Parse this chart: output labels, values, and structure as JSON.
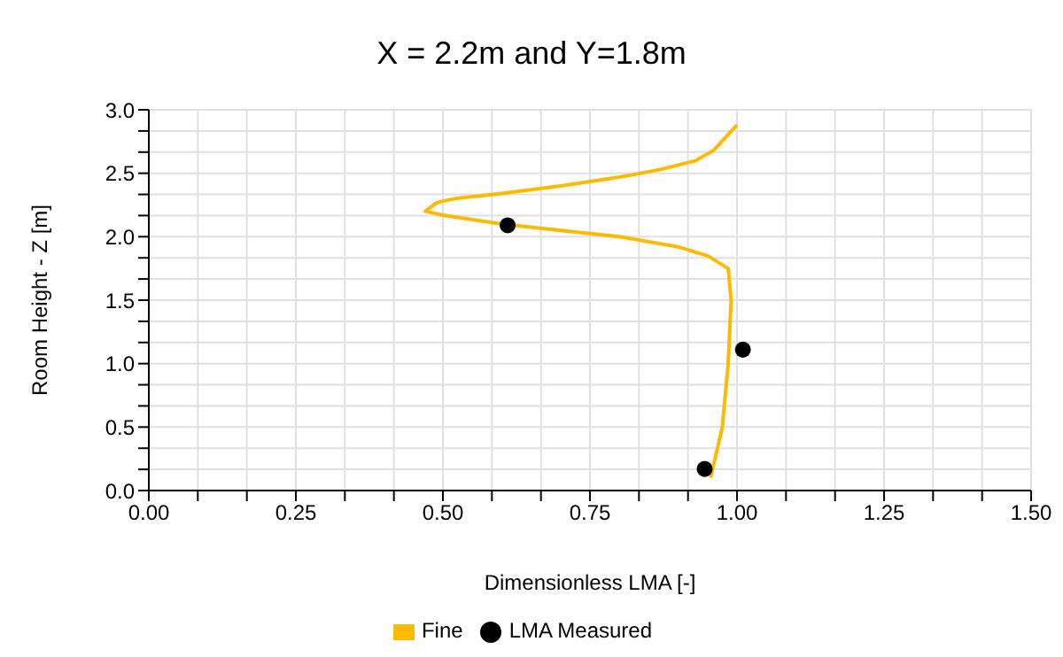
{
  "chart_data": {
    "type": "line",
    "title": "X = 2.2m and Y=1.8m",
    "xlabel": "Dimensionless LMA [-]",
    "ylabel": "Room Height - Z [m]",
    "xlim": [
      0,
      1.5
    ],
    "ylim": [
      0,
      3.0
    ],
    "xticks": [
      {
        "value": 0,
        "label": "0.00"
      },
      {
        "value": 0.0833,
        "label": null
      },
      {
        "value": 0.1667,
        "label": null
      },
      {
        "value": 0.25,
        "label": "0.25"
      },
      {
        "value": 0.3333,
        "label": null
      },
      {
        "value": 0.4167,
        "label": null
      },
      {
        "value": 0.5,
        "label": "0.50"
      },
      {
        "value": 0.5833,
        "label": null
      },
      {
        "value": 0.6667,
        "label": null
      },
      {
        "value": 0.75,
        "label": "0.75"
      },
      {
        "value": 0.8333,
        "label": null
      },
      {
        "value": 0.9167,
        "label": null
      },
      {
        "value": 1.0,
        "label": "1.00"
      },
      {
        "value": 1.0833,
        "label": null
      },
      {
        "value": 1.1667,
        "label": null
      },
      {
        "value": 1.25,
        "label": "1.25"
      },
      {
        "value": 1.3333,
        "label": null
      },
      {
        "value": 1.4167,
        "label": null
      },
      {
        "value": 1.5,
        "label": "1.50"
      }
    ],
    "yticks": [
      {
        "value": 0,
        "label": "0.0"
      },
      {
        "value": 0.1667,
        "label": null
      },
      {
        "value": 0.3333,
        "label": null
      },
      {
        "value": 0.5,
        "label": "0.5"
      },
      {
        "value": 0.6667,
        "label": null
      },
      {
        "value": 0.8333,
        "label": null
      },
      {
        "value": 1.0,
        "label": "1.0"
      },
      {
        "value": 1.1667,
        "label": null
      },
      {
        "value": 1.3333,
        "label": null
      },
      {
        "value": 1.5,
        "label": "1.5"
      },
      {
        "value": 1.6667,
        "label": null
      },
      {
        "value": 1.8333,
        "label": null
      },
      {
        "value": 2.0,
        "label": "2.0"
      },
      {
        "value": 2.1667,
        "label": null
      },
      {
        "value": 2.3333,
        "label": null
      },
      {
        "value": 2.5,
        "label": "2.5"
      },
      {
        "value": 2.6667,
        "label": null
      },
      {
        "value": 2.8333,
        "label": null
      },
      {
        "value": 3.0,
        "label": "3.0"
      }
    ],
    "grid": true,
    "legend": "bottom",
    "series": [
      {
        "name": "Fine",
        "color": "#ffb900",
        "marker": "none",
        "x": [
          0.955,
          0.975,
          0.985,
          0.99,
          0.985,
          0.95,
          0.9,
          0.8,
          0.7,
          0.6,
          0.5,
          0.47,
          0.49,
          0.52,
          0.6,
          0.7,
          0.8,
          0.87,
          0.93,
          0.96,
          1.0
        ],
        "values": [
          0.1,
          0.5,
          1.0,
          1.5,
          1.75,
          1.85,
          1.92,
          2.0,
          2.05,
          2.1,
          2.17,
          2.2,
          2.27,
          2.3,
          2.34,
          2.4,
          2.47,
          2.53,
          2.6,
          2.68,
          2.88
        ]
      },
      {
        "name": "LMA Measured",
        "type": "scatter",
        "color": "#000000",
        "marker": "circle",
        "x": [
          0.61,
          1.01,
          0.945
        ],
        "values": [
          2.09,
          1.11,
          0.17
        ]
      }
    ]
  }
}
